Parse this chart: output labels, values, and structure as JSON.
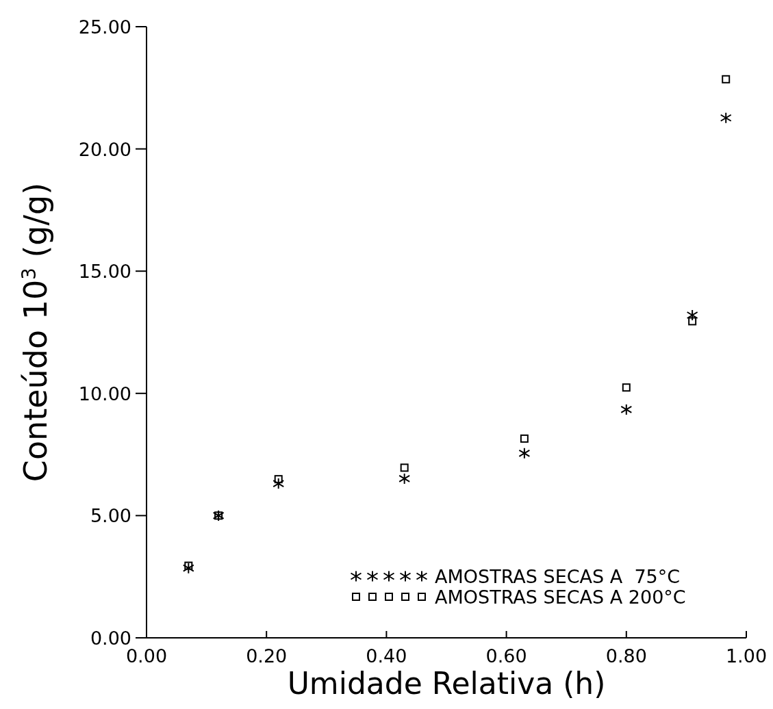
{
  "chart_data": {
    "type": "scatter",
    "xlabel": "Umidade Relativa (h)",
    "ylabel": "Conteúdo 10$^{3}$ (g/g)",
    "x": [
      0.07,
      0.12,
      0.22,
      0.43,
      0.63,
      0.8,
      0.91,
      0.966
    ],
    "xlim": [
      0,
      1
    ],
    "ylim": [
      0,
      25
    ],
    "xticks": [
      {
        "value": 0,
        "label": "0.00"
      },
      {
        "value": 0.2,
        "label": "0.20"
      },
      {
        "value": 0.4,
        "label": "0.40"
      },
      {
        "value": 0.6,
        "label": "0.60"
      },
      {
        "value": 0.8,
        "label": "0.80"
      },
      {
        "value": 1,
        "label": "1.00"
      }
    ],
    "yticks": [
      {
        "value": 0,
        "label": "0.00"
      },
      {
        "value": 5,
        "label": "5.00"
      },
      {
        "value": 10,
        "label": "10.00"
      },
      {
        "value": 15,
        "label": "15.00"
      },
      {
        "value": 20,
        "label": "20.00"
      },
      {
        "value": 25,
        "label": "25.00"
      }
    ],
    "series": [
      {
        "name": "AMOSTRAS SECAS A  75°C",
        "color": "#000000",
        "marker": "cross",
        "values": [
          2.85,
          5.0,
          6.31,
          6.51,
          7.55,
          9.34,
          13.2,
          21.27
        ]
      },
      {
        "name": "AMOSTRAS SECAS A 200°C",
        "color": "#000000",
        "marker": "square",
        "values": [
          2.95,
          5.0,
          6.49,
          6.96,
          8.15,
          10.24,
          12.95,
          22.85
        ]
      }
    ],
    "legend": "bottom right",
    "grid": false
  }
}
